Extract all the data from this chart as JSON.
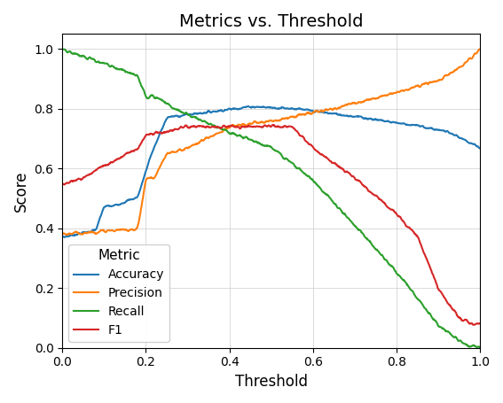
{
  "title": "Metrics vs. Threshold",
  "xlabel": "Threshold",
  "ylabel": "Score",
  "xlim": [
    0.0,
    1.0
  ],
  "ylim": [
    0.0,
    1.05
  ],
  "colors": {
    "Accuracy": "#1f77b4",
    "Precision": "#ff7f0e",
    "Recall": "#2ca02c",
    "F1": "#d62728"
  },
  "legend_title": "Metric",
  "legend_labels": [
    "Accuracy",
    "Precision",
    "Recall",
    "F1"
  ],
  "grid": true,
  "figsize": [
    5.67,
    4.55
  ],
  "dpi": 100
}
